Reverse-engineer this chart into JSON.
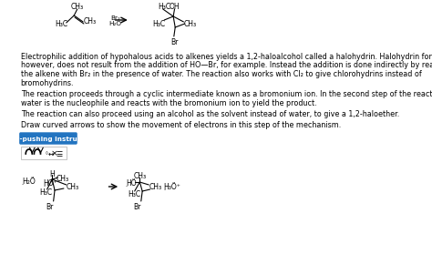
{
  "bg_color": "#ffffff",
  "body_lines": [
    "Electrophilic addition of hypohalous acids to alkenes yields a 1,2-haloalcohol called a halohydrin. Halohydrin formation,",
    "however, does not result from the addition of HO—Br, for example. Instead the addition is done indirectly by reaction of",
    "the alkene with Br₂ in the presence of water. The reaction also works with Cl₂ to give chlorohydrins instead of",
    "bromohydrins."
  ],
  "body_lines2": [
    "The reaction proceeds through a cyclic intermediate known as a bromonium ion. In the second step of the reaction,",
    "water is the nucleophile and reacts with the bromonium ion to yield the product."
  ],
  "body_line3": "The reaction can also proceed using an alcohol as the solvent instead of water, to give a 1,2-haloether.",
  "body_line4": "Draw curved arrows to show the movement of electrons in this step of the mechanism.",
  "button_text": "Arrow-pushing Instructions",
  "button_bg": "#2274c0",
  "button_text_color": "#ffffff",
  "font_size": 5.8,
  "font_size_small": 5.2,
  "font_size_chem": 5.5
}
